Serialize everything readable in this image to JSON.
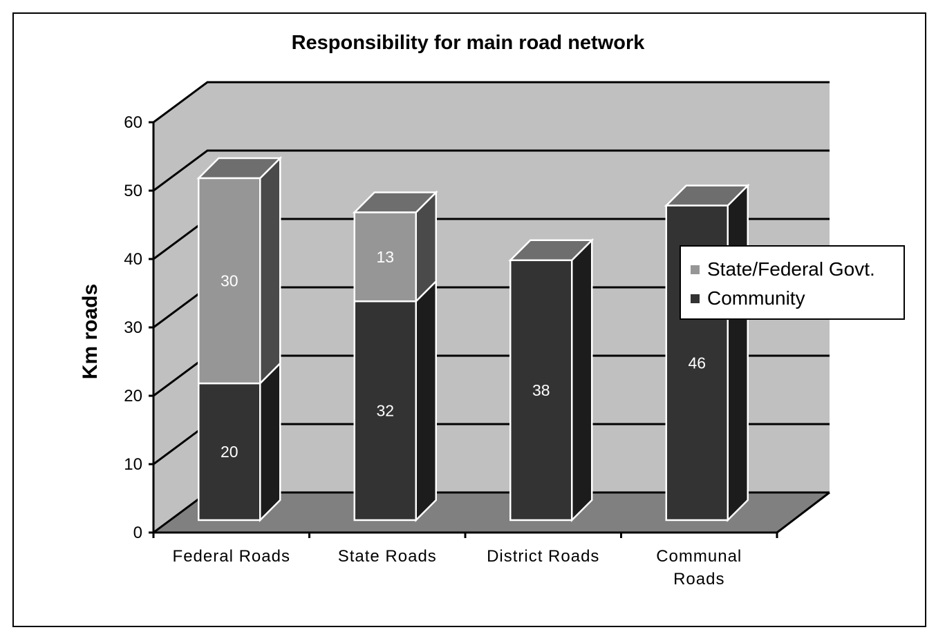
{
  "chart_data": {
    "type": "bar",
    "stacked": true,
    "three_d": true,
    "title": "Responsibility for main road network",
    "xlabel": "",
    "ylabel": "Km roads",
    "ylim": [
      0,
      60
    ],
    "yticks": [
      "0",
      "10",
      "20",
      "30",
      "40",
      "50",
      "60"
    ],
    "grid": true,
    "legend_position": "right",
    "categories": [
      {
        "lines": [
          "Federal Roads"
        ]
      },
      {
        "lines": [
          "State Roads"
        ]
      },
      {
        "lines": [
          "District Roads"
        ]
      },
      {
        "lines": [
          "Communal",
          "Roads"
        ]
      }
    ],
    "series": [
      {
        "name": "Community",
        "values": [
          20,
          32,
          38,
          46
        ],
        "labels": [
          "20",
          "32",
          "38",
          "46"
        ],
        "color": "#333333"
      },
      {
        "name": "State/Federal Govt.",
        "values": [
          30,
          13,
          0,
          0
        ],
        "labels": [
          "30",
          "13",
          "",
          ""
        ],
        "color": "#969696"
      }
    ],
    "colors": {
      "back_wall": "#c0c0c0",
      "floor": "#808080",
      "community_side": "#1c1c1c",
      "community_top": "#6e6e6e",
      "govt_side": "#4a4a4a",
      "govt_top": "#6e6e6e"
    }
  },
  "legend": {
    "items": [
      {
        "label": "State/Federal Govt.",
        "color": "#969696"
      },
      {
        "label": "Community",
        "color": "#333333"
      }
    ]
  }
}
